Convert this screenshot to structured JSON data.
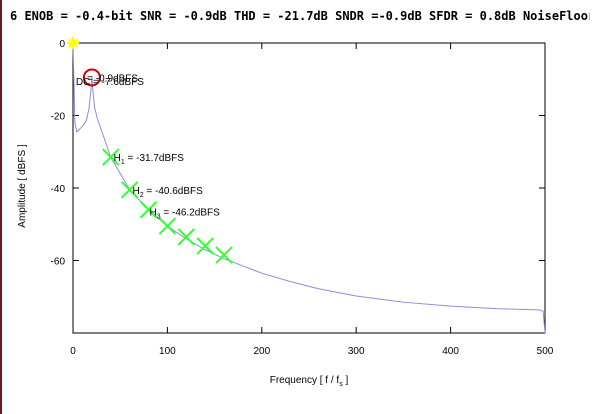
{
  "chart_data": {
    "type": "line",
    "title": "6 ENOB = -0.4-bit SNR = -0.9dB THD = -21.7dB SNDR =-0.9dB SFDR = 0.8dB NoiseFloor",
    "xlabel": "Frequency [ f / f",
    "xlabel_sub": "s",
    "xlabel_end": " ]",
    "ylabel": "Amplitude [ dBFS ]",
    "xlim": [
      0,
      500
    ],
    "ylim": [
      -80,
      0
    ],
    "x_ticks": [
      0,
      100,
      200,
      300,
      400,
      500
    ],
    "y_ticks": [
      0,
      -20,
      -40,
      -60
    ],
    "grid": false,
    "line_color": "#8c8cd9",
    "series": [
      {
        "x": [
          0,
          2,
          4,
          6,
          8,
          10,
          14,
          17,
          19,
          20,
          21,
          23,
          26,
          30,
          40,
          60,
          80,
          100,
          120,
          140,
          160,
          180,
          200,
          230,
          260,
          300,
          350,
          400,
          450,
          490,
          495,
          498,
          500
        ],
        "y": [
          0,
          -22,
          -24.5,
          -24,
          -23.5,
          -23,
          -21.5,
          -18,
          -13,
          -9.5,
          -13,
          -18,
          -21,
          -24,
          -31.5,
          -40.5,
          -46,
          -50.5,
          -54,
          -57,
          -59.5,
          -61.5,
          -63.5,
          -65.8,
          -67.8,
          -69.8,
          -71.5,
          -72.6,
          -73.3,
          -73.6,
          -73.7,
          -74,
          -80
        ]
      }
    ],
    "markers": [
      {
        "kind": "dc",
        "x": 0,
        "y": 0,
        "color": "#ffff00"
      },
      {
        "kind": "fundamental",
        "x": 20,
        "y": -9.5,
        "color": "#cc0000"
      },
      {
        "kind": "harmonic",
        "x": 40,
        "y": -31.5,
        "color": "#33ff33"
      },
      {
        "kind": "harmonic",
        "x": 60,
        "y": -40.5,
        "color": "#33ff33"
      },
      {
        "kind": "harmonic",
        "x": 80,
        "y": -46,
        "color": "#33ff33"
      },
      {
        "kind": "harmonic",
        "x": 100,
        "y": -50.5,
        "color": "#33ff33"
      },
      {
        "kind": "harmonic",
        "x": 120,
        "y": -53.5,
        "color": "#33ff33"
      },
      {
        "kind": "harmonic",
        "x": 140,
        "y": -56,
        "color": "#33ff33"
      },
      {
        "kind": "harmonic",
        "x": 160,
        "y": -58.5,
        "color": "#33ff33"
      }
    ],
    "annotations": [
      {
        "text": "DC = -7.6dBFS",
        "x": 3,
        "y": -10.5,
        "sub": ""
      },
      {
        "text": "= -0.9dBFS",
        "x": 15,
        "y": -9.5,
        "sub": ""
      },
      {
        "text": "H",
        "sub": "1",
        "rest": " = -31.7dBFS",
        "x": 43,
        "y": -31.5
      },
      {
        "text": "H",
        "sub": "2",
        "rest": " = -40.6dBFS",
        "x": 63,
        "y": -40.5
      },
      {
        "text": "H",
        "sub": "3",
        "rest": " = -46.2dBFS",
        "x": 81,
        "y": -46.5
      }
    ]
  }
}
